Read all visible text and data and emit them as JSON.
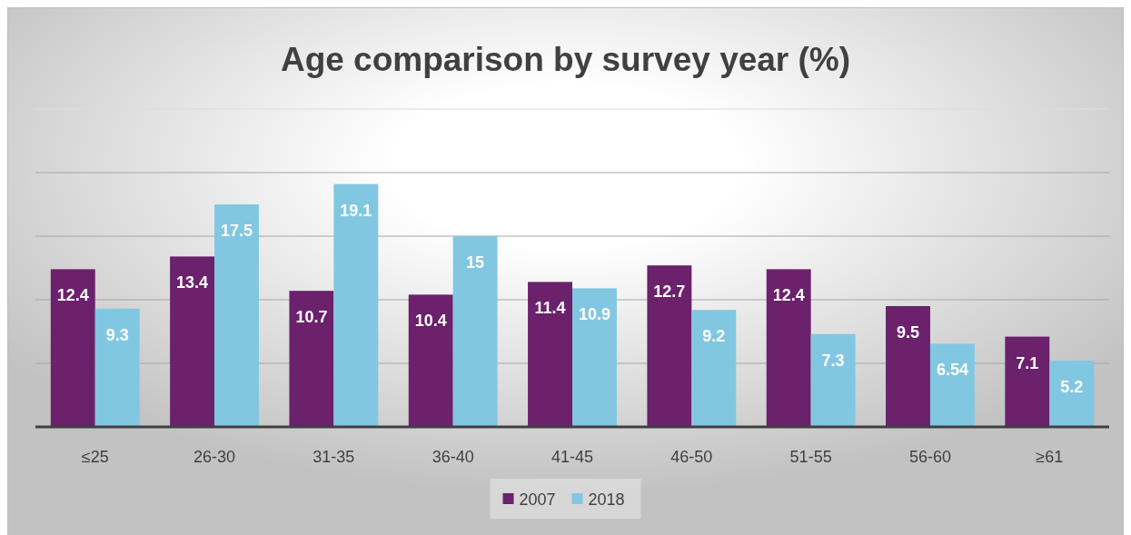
{
  "chart_data": {
    "type": "bar",
    "title": "Age comparison by survey year (%)",
    "categories": [
      "≤25",
      "26-30",
      "31-35",
      "36-40",
      "41-45",
      "46-50",
      "51-55",
      "56-60",
      "≥61"
    ],
    "series": [
      {
        "name": "2007",
        "color": "#6b216b",
        "values": [
          12.4,
          13.4,
          10.7,
          10.4,
          11.4,
          12.7,
          12.4,
          9.5,
          7.1
        ]
      },
      {
        "name": "2018",
        "color": "#82c7e1",
        "values": [
          9.3,
          17.5,
          19.1,
          15,
          10.9,
          9.2,
          7.3,
          6.54,
          5.2
        ]
      }
    ],
    "ylim": [
      0,
      25
    ],
    "yticks": [
      {
        "value": 5,
        "label": null
      },
      {
        "value": 10,
        "label": null
      },
      {
        "value": 15,
        "label": null
      },
      {
        "value": 20,
        "label": null
      },
      {
        "value": 25,
        "label": null
      }
    ],
    "tick_labels": "x",
    "grid": "y",
    "legend": "bottom",
    "data_labels": true
  }
}
